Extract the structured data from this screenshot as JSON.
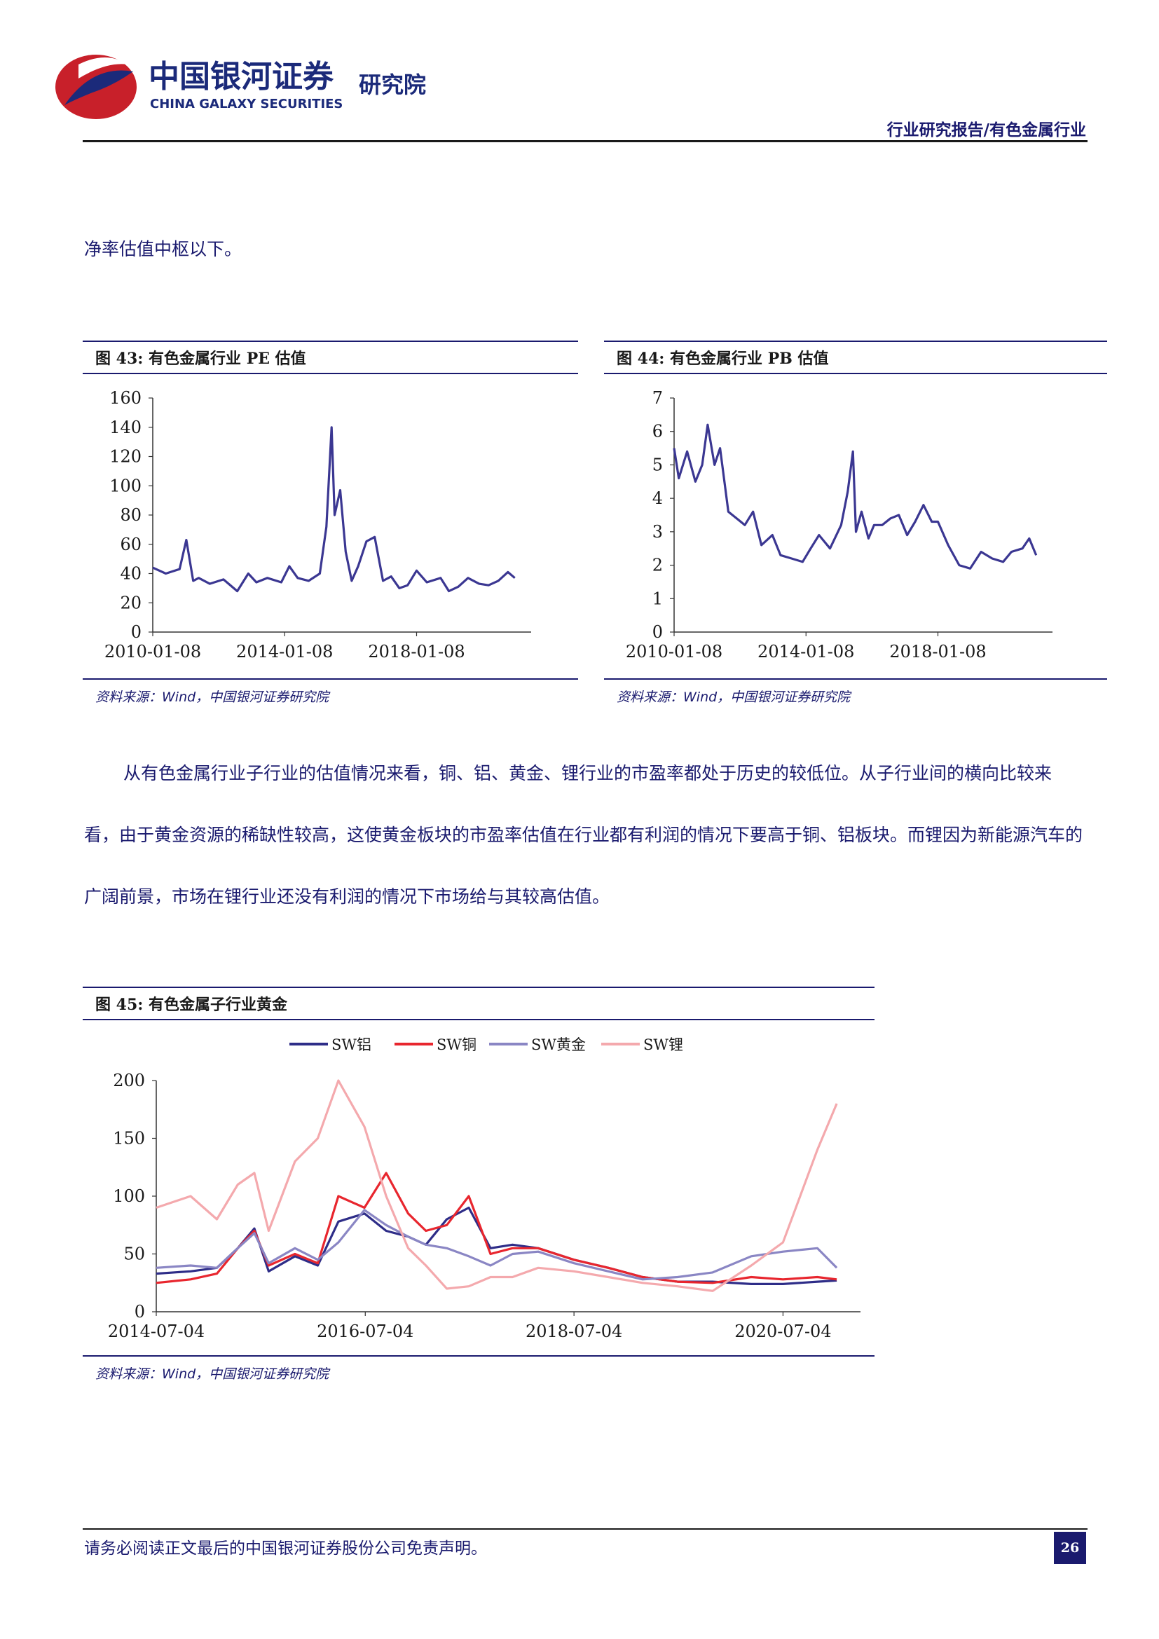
{
  "header": {
    "logo_cn": "中国银河证券",
    "logo_en": "CHINA GALAXY SECURITIES",
    "logo_suffix": "研究院",
    "report_type": "行业研究报告/有色金属行业"
  },
  "intro_text": "净率估值中枢以下。",
  "body_text": "从有色金属行业子行业的估值情况来看，铜、铝、黄金、锂行业的市盈率都处于历史的较低位。从子行业间的横向比较来看，由于黄金资源的稀缺性较高，这使黄金板块的市盈率估值在行业都有利润的情况下要高于铜、铝板块。而锂因为新能源汽车的广阔前景，市场在锂行业还没有利润的情况下市场给与其较高估值。",
  "colors": {
    "navy": "#1a1a6e",
    "line_pe": "#3b3792",
    "sw_al": "#2e2d88",
    "sw_cu": "#e8262e",
    "sw_au": "#8a86c4",
    "sw_li": "#f4a9ad"
  },
  "fig43": {
    "title": "图 43:  有色金属行业 PE 估值",
    "source": "资料来源：Wind，中国银河证券研究院"
  },
  "fig44": {
    "title": "图 44:  有色金属行业 PB 估值",
    "source": "资料来源：Wind，中国银河证券研究院"
  },
  "fig45": {
    "title": "图 45:  有色金属子行业黄金",
    "source": "资料来源：Wind，中国银河证券研究院"
  },
  "chart_data": [
    {
      "type": "line",
      "ylim": [
        0,
        160
      ],
      "yticks": [
        "0",
        "20",
        "40",
        "60",
        "80",
        "100",
        "120",
        "140",
        "160"
      ],
      "xticks": [
        "2010-01-08",
        "2014-01-08",
        "2018-01-08"
      ],
      "series": [
        {
          "x": [
            "2010-01-08",
            "2010-06-01",
            "2010-11-01",
            "2011-01-15",
            "2011-04-01",
            "2011-06-01",
            "2011-10-01",
            "2012-03-01",
            "2012-08-01",
            "2012-12-01",
            "2013-03-01",
            "2013-07-01",
            "2013-12-01",
            "2014-03-01",
            "2014-06-01",
            "2014-10-01",
            "2015-02-01",
            "2015-04-15",
            "2015-06-12",
            "2015-07-15",
            "2015-09-15",
            "2015-11-15",
            "2016-01-20",
            "2016-04-01",
            "2016-07-01",
            "2016-10-01",
            "2017-01-01",
            "2017-04-01",
            "2017-07-01",
            "2017-10-01",
            "2018-01-08",
            "2018-05-01",
            "2018-10-01",
            "2019-01-01",
            "2019-04-15",
            "2019-08-01",
            "2019-12-01",
            "2020-03-15",
            "2020-07-01",
            "2020-10-15",
            "2020-12-31"
          ],
          "values": [
            44,
            40,
            43,
            63,
            35,
            37,
            33,
            36,
            28,
            40,
            34,
            37,
            34,
            45,
            37,
            35,
            40,
            72,
            140,
            80,
            97,
            55,
            35,
            45,
            62,
            65,
            35,
            38,
            30,
            32,
            42,
            34,
            37,
            28,
            31,
            37,
            33,
            32,
            35,
            41,
            37
          ]
        }
      ]
    },
    {
      "type": "line",
      "ylim": [
        0,
        7
      ],
      "yticks": [
        "0",
        "1",
        "2",
        "3",
        "4",
        "5",
        "6",
        "7"
      ],
      "xticks": [
        "2010-01-08",
        "2014-01-08",
        "2018-01-08"
      ],
      "series": [
        {
          "x": [
            "2010-01-08",
            "2010-03-01",
            "2010-06-01",
            "2010-09-01",
            "2010-11-15",
            "2011-01-15",
            "2011-04-01",
            "2011-06-01",
            "2011-09-01",
            "2011-12-01",
            "2012-03-01",
            "2012-06-01",
            "2012-09-01",
            "2013-01-01",
            "2013-04-01",
            "2013-08-01",
            "2013-12-01",
            "2014-03-01",
            "2014-06-01",
            "2014-10-01",
            "2015-02-01",
            "2015-04-15",
            "2015-06-12",
            "2015-07-15",
            "2015-09-15",
            "2015-12-01",
            "2016-02-01",
            "2016-05-01",
            "2016-08-01",
            "2016-11-01",
            "2017-02-01",
            "2017-05-01",
            "2017-08-01",
            "2017-11-01",
            "2018-01-08",
            "2018-05-01",
            "2018-09-01",
            "2019-01-01",
            "2019-05-01",
            "2019-09-01",
            "2020-01-01",
            "2020-04-01",
            "2020-08-01",
            "2020-10-15",
            "2020-12-31"
          ],
          "values": [
            5.5,
            4.6,
            5.4,
            4.5,
            5.0,
            6.2,
            5.0,
            5.5,
            3.6,
            3.4,
            3.2,
            3.6,
            2.6,
            2.9,
            2.3,
            2.2,
            2.1,
            2.5,
            2.9,
            2.5,
            3.2,
            4.2,
            5.4,
            3.0,
            3.6,
            2.8,
            3.2,
            3.2,
            3.4,
            3.5,
            2.9,
            3.3,
            3.8,
            3.3,
            3.3,
            2.6,
            2.0,
            1.9,
            2.4,
            2.2,
            2.1,
            2.4,
            2.5,
            2.8,
            2.3
          ]
        }
      ]
    },
    {
      "type": "line",
      "ylim": [
        0,
        200
      ],
      "yticks": [
        "0",
        "50",
        "100",
        "150",
        "200"
      ],
      "xticks": [
        "2014-07-04",
        "2016-07-04",
        "2018-07-04",
        "2020-07-04"
      ],
      "legend": [
        "SW铝",
        "SW铜",
        "SW黄金",
        "SW锂"
      ],
      "x": [
        "2014-07-04",
        "2014-11-01",
        "2015-02-01",
        "2015-04-15",
        "2015-06-12",
        "2015-08-01",
        "2015-11-01",
        "2016-01-20",
        "2016-04-01",
        "2016-07-01",
        "2016-09-15",
        "2016-12-01",
        "2017-02-01",
        "2017-04-15",
        "2017-07-01",
        "2017-09-15",
        "2017-12-01",
        "2018-03-01",
        "2018-07-04",
        "2018-11-01",
        "2019-03-01",
        "2019-07-01",
        "2019-11-01",
        "2020-03-15",
        "2020-07-04",
        "2020-11-01",
        "2021-01-08"
      ],
      "series": [
        {
          "name": "SW铝",
          "values": [
            33,
            35,
            38,
            55,
            72,
            35,
            48,
            40,
            78,
            85,
            70,
            65,
            58,
            80,
            90,
            55,
            58,
            55,
            45,
            38,
            30,
            26,
            26,
            24,
            24,
            26,
            27
          ]
        },
        {
          "name": "SW铜",
          "values": [
            25,
            28,
            33,
            55,
            70,
            40,
            50,
            42,
            100,
            90,
            120,
            85,
            70,
            75,
            100,
            50,
            55,
            55,
            45,
            38,
            30,
            26,
            25,
            30,
            28,
            30,
            28
          ]
        },
        {
          "name": "SW黄金",
          "values": [
            38,
            40,
            38,
            55,
            68,
            42,
            55,
            45,
            60,
            88,
            75,
            65,
            58,
            55,
            48,
            40,
            50,
            52,
            42,
            35,
            28,
            30,
            34,
            48,
            52,
            55,
            38
          ]
        },
        {
          "name": "SW锂",
          "values": [
            90,
            100,
            80,
            110,
            120,
            70,
            130,
            150,
            200,
            160,
            100,
            55,
            40,
            20,
            22,
            30,
            30,
            38,
            35,
            30,
            25,
            22,
            18,
            40,
            60,
            140,
            180
          ]
        }
      ]
    }
  ]
}
